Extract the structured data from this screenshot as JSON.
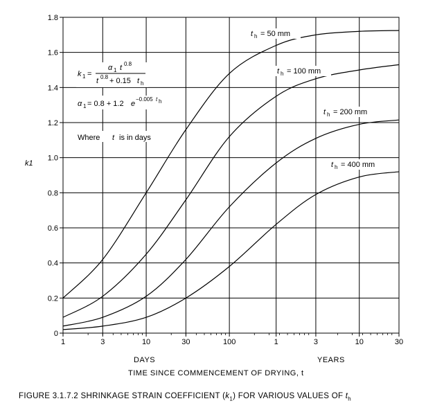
{
  "chart_data": {
    "type": "line",
    "x_scale": "log",
    "x_domain_days": [
      1,
      10950
    ],
    "ylim": [
      0,
      1.8
    ],
    "y_ticks": [
      "0",
      "0.2",
      "0.4",
      "0.6",
      "0.8",
      "1.0",
      "1.2",
      "1.4",
      "1.6",
      "1.8"
    ],
    "x_ticks": [
      {
        "label": "1",
        "days": 1
      },
      {
        "label": "3",
        "days": 3
      },
      {
        "label": "10",
        "days": 10
      },
      {
        "label": "30",
        "days": 30
      },
      {
        "label": "100",
        "days": 100
      },
      {
        "label": "1",
        "days": 365
      },
      {
        "label": "3",
        "days": 1095
      },
      {
        "label": "10",
        "days": 3650
      },
      {
        "label": "30",
        "days": 10950
      }
    ],
    "ylabel": "k1",
    "xlabel_days": "DAYS",
    "xlabel_years": "YEARS",
    "xlabel": "TIME SINCE COMMENCEMENT OF DRYING, t",
    "grid": true,
    "series": [
      {
        "name": "th = 50 mm",
        "x_days": [
          1,
          3,
          10,
          30,
          100,
          365,
          1095,
          3650,
          10950
        ],
        "values": [
          0.2,
          0.42,
          0.8,
          1.16,
          1.48,
          1.64,
          1.7,
          1.72,
          1.725
        ]
      },
      {
        "name": "th = 100 mm",
        "x_days": [
          1,
          3,
          10,
          30,
          100,
          365,
          1095,
          3650,
          10950
        ],
        "values": [
          0.09,
          0.21,
          0.45,
          0.76,
          1.12,
          1.35,
          1.45,
          1.5,
          1.53
        ]
      },
      {
        "name": "th = 200 mm",
        "x_days": [
          1,
          3,
          10,
          30,
          100,
          365,
          1095,
          3650,
          10950
        ],
        "values": [
          0.04,
          0.09,
          0.21,
          0.42,
          0.72,
          0.97,
          1.11,
          1.19,
          1.215
        ]
      },
      {
        "name": "th = 400 mm",
        "x_days": [
          1,
          3,
          10,
          30,
          100,
          365,
          1095,
          3650,
          10950
        ],
        "values": [
          0.02,
          0.04,
          0.09,
          0.2,
          0.38,
          0.62,
          0.79,
          0.89,
          0.92
        ]
      }
    ]
  },
  "equation": {
    "k1_lhs": "k",
    "k1_lhs_sub": "1",
    "equals": "=",
    "numerator": "α",
    "numerator_sub": "1",
    "numerator_t": "t",
    "numerator_exp": "0.8",
    "denominator_t": "t",
    "denominator_exp": "0.8",
    "denominator_rest": "+ 0.15",
    "denominator_th": "t",
    "denominator_th_sub": "h",
    "alpha_lhs": "α",
    "alpha_lhs_sub": "1",
    "alpha_rhs": "= 0.8 + 1.2",
    "alpha_e": "e",
    "alpha_exp": "−0.005",
    "alpha_exp_t": "t",
    "alpha_exp_t_sub": "h",
    "where_prefix": "Where",
    "where_t": "t",
    "where_suffix": "is in days"
  },
  "curve_labels": [
    {
      "t": "t",
      "sub": "h",
      "rest": "= 50  mm"
    },
    {
      "t": "t",
      "sub": "h",
      "rest": "= 100  mm"
    },
    {
      "t": "t",
      "sub": "h",
      "rest": "= 200  mm"
    },
    {
      "t": "t",
      "sub": "h",
      "rest": "= 400  mm"
    }
  ],
  "caption": {
    "prefix": "FIGURE  3.1.7.2   SHRINKAGE STRAIN COEFFICIENT (",
    "k": "k",
    "k_sub": "1",
    "middle": ") FOR VARIOUS VALUES OF ",
    "t": "t",
    "t_sub": "h"
  },
  "colors": {
    "line": "#000000",
    "grid": "#000000",
    "background": "#ffffff"
  }
}
